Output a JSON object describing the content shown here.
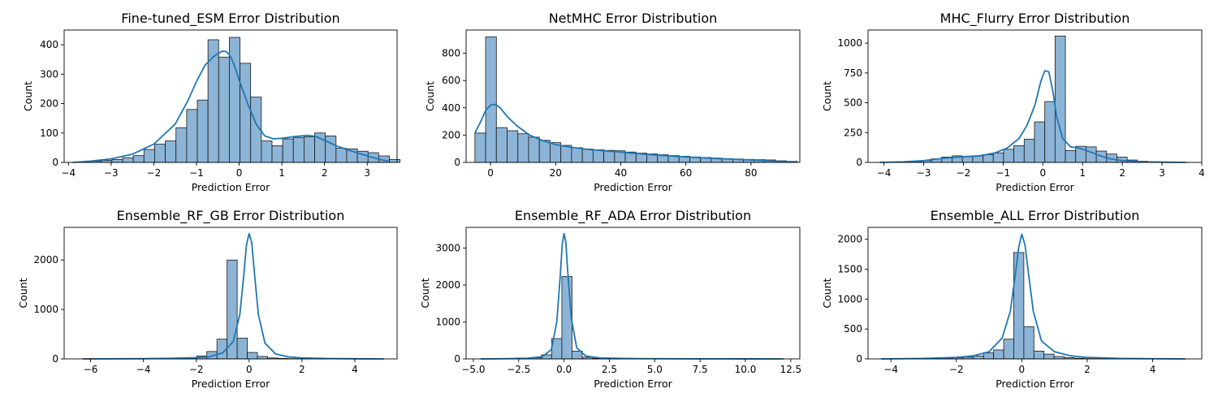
{
  "colors": {
    "bar_fill": "#8cb4d6",
    "bar_edge": "#1a1a1a",
    "kde_line": "#1f77b4",
    "axis": "#000000"
  },
  "chart_data": [
    {
      "type": "histogram",
      "title": "Fine-tuned_ESM Error Distribution",
      "xlabel": "Prediction Error",
      "ylabel": "Count",
      "xlim": [
        -4.1,
        3.7
      ],
      "ylim": [
        0,
        450
      ],
      "xticks": [
        -4,
        -3,
        -2,
        -1,
        0,
        1,
        2,
        3
      ],
      "yticks": [
        0,
        100,
        200,
        300,
        400
      ],
      "bin_start": -3.73,
      "bin_width": 0.25,
      "counts": [
        2,
        4,
        7,
        10,
        16,
        23,
        44,
        62,
        73,
        118,
        180,
        212,
        417,
        358,
        425,
        337,
        222,
        73,
        57,
        80,
        85,
        87,
        100,
        90,
        48,
        46,
        38,
        33,
        22,
        10
      ],
      "kde": [
        [
          -3.9,
          0
        ],
        [
          -3.5,
          4
        ],
        [
          -3.0,
          12
        ],
        [
          -2.5,
          28
        ],
        [
          -2.0,
          62
        ],
        [
          -1.5,
          130
        ],
        [
          -1.2,
          210
        ],
        [
          -1.0,
          275
        ],
        [
          -0.8,
          330
        ],
        [
          -0.6,
          360
        ],
        [
          -0.4,
          378
        ],
        [
          -0.3,
          377
        ],
        [
          -0.2,
          360
        ],
        [
          -0.1,
          325
        ],
        [
          0.0,
          280
        ],
        [
          0.2,
          200
        ],
        [
          0.4,
          130
        ],
        [
          0.6,
          90
        ],
        [
          0.8,
          80
        ],
        [
          1.0,
          82
        ],
        [
          1.3,
          88
        ],
        [
          1.6,
          92
        ],
        [
          1.8,
          88
        ],
        [
          2.0,
          75
        ],
        [
          2.3,
          55
        ],
        [
          2.6,
          40
        ],
        [
          3.0,
          22
        ],
        [
          3.3,
          10
        ],
        [
          3.5,
          4
        ]
      ]
    },
    {
      "type": "histogram",
      "title": "NetMHC Error Distribution",
      "xlabel": "Prediction Error",
      "ylabel": "Count",
      "xlim": [
        -7.5,
        95
      ],
      "ylim": [
        0,
        970
      ],
      "xticks": [
        0,
        20,
        40,
        60,
        80
      ],
      "yticks": [
        0,
        200,
        400,
        600,
        800
      ],
      "bin_start": -4.8,
      "bin_width": 3.3,
      "counts": [
        215,
        920,
        255,
        232,
        210,
        185,
        162,
        145,
        125,
        108,
        98,
        92,
        88,
        85,
        76,
        68,
        62,
        56,
        50,
        45,
        40,
        36,
        32,
        28,
        25,
        22,
        20,
        18,
        12,
        8
      ],
      "kde": [
        [
          -4.8,
          215
        ],
        [
          -3,
          300
        ],
        [
          -1.5,
          380
        ],
        [
          0,
          420
        ],
        [
          1.5,
          425
        ],
        [
          3,
          400
        ],
        [
          5,
          340
        ],
        [
          8,
          270
        ],
        [
          12,
          200
        ],
        [
          16,
          160
        ],
        [
          20,
          130
        ],
        [
          25,
          110
        ],
        [
          30,
          95
        ],
        [
          35,
          85
        ],
        [
          40,
          75
        ],
        [
          45,
          65
        ],
        [
          50,
          55
        ],
        [
          55,
          47
        ],
        [
          60,
          40
        ],
        [
          65,
          34
        ],
        [
          70,
          28
        ],
        [
          75,
          23
        ],
        [
          80,
          18
        ],
        [
          85,
          12
        ],
        [
          90,
          6
        ],
        [
          93.5,
          3
        ]
      ]
    },
    {
      "type": "histogram",
      "title": "MHC_Flurry Error Distribution",
      "xlabel": "Prediction Error",
      "ylabel": "Count",
      "xlim": [
        -4.4,
        4.0
      ],
      "ylim": [
        0,
        1110
      ],
      "xticks": [
        -4,
        -3,
        -2,
        -1,
        0,
        1,
        2,
        3,
        4
      ],
      "yticks": [
        0,
        250,
        500,
        750,
        1000
      ],
      "bin_start": -4.1,
      "bin_width": 0.2593,
      "counts": [
        2,
        3,
        5,
        8,
        15,
        30,
        45,
        55,
        50,
        55,
        65,
        80,
        110,
        140,
        195,
        340,
        510,
        1060,
        100,
        135,
        130,
        95,
        70,
        45,
        20,
        10,
        5,
        3,
        2,
        1
      ],
      "kde": [
        [
          -4.1,
          0
        ],
        [
          -3.5,
          5
        ],
        [
          -3.0,
          15
        ],
        [
          -2.5,
          35
        ],
        [
          -2.0,
          48
        ],
        [
          -1.6,
          55
        ],
        [
          -1.2,
          80
        ],
        [
          -0.9,
          120
        ],
        [
          -0.6,
          200
        ],
        [
          -0.4,
          310
        ],
        [
          -0.2,
          480
        ],
        [
          -0.05,
          680
        ],
        [
          0.05,
          770
        ],
        [
          0.15,
          760
        ],
        [
          0.25,
          600
        ],
        [
          0.35,
          380
        ],
        [
          0.5,
          200
        ],
        [
          0.7,
          130
        ],
        [
          0.9,
          120
        ],
        [
          1.1,
          100
        ],
        [
          1.4,
          60
        ],
        [
          1.7,
          30
        ],
        [
          2.0,
          15
        ],
        [
          2.5,
          5
        ],
        [
          3.0,
          2
        ],
        [
          3.6,
          0
        ]
      ]
    },
    {
      "type": "histogram",
      "title": "Ensemble_RF_GB Error Distribution",
      "xlabel": "Prediction Error",
      "ylabel": "Count",
      "xlim": [
        -7.0,
        5.6
      ],
      "ylim": [
        0,
        2660
      ],
      "xticks": [
        -6,
        -4,
        -2,
        0,
        2,
        4
      ],
      "yticks": [
        0,
        1000,
        2000
      ],
      "bin_start": -6.2,
      "bin_width": 0.3833,
      "counts": [
        0,
        1,
        0,
        1,
        2,
        2,
        3,
        5,
        8,
        12,
        20,
        60,
        150,
        400,
        2000,
        420,
        130,
        50,
        20,
        10,
        5,
        3,
        2,
        1,
        1,
        0,
        0,
        0,
        0,
        0
      ],
      "kde": [
        [
          -6.3,
          0
        ],
        [
          -4.0,
          5
        ],
        [
          -3.0,
          12
        ],
        [
          -2.0,
          25
        ],
        [
          -1.5,
          45
        ],
        [
          -1.0,
          120
        ],
        [
          -0.6,
          350
        ],
        [
          -0.35,
          900
        ],
        [
          -0.2,
          1700
        ],
        [
          -0.1,
          2300
        ],
        [
          0.0,
          2540
        ],
        [
          0.1,
          2350
        ],
        [
          0.2,
          1750
        ],
        [
          0.35,
          900
        ],
        [
          0.6,
          320
        ],
        [
          1.0,
          100
        ],
        [
          1.5,
          40
        ],
        [
          2.0,
          20
        ],
        [
          3.0,
          8
        ],
        [
          4.0,
          3
        ],
        [
          5.1,
          0
        ]
      ]
    },
    {
      "type": "histogram",
      "title": "Ensemble_RF_ADA Error Distribution",
      "xlabel": "Prediction Error",
      "ylabel": "Count",
      "xlim": [
        -5.4,
        13.0
      ],
      "ylim": [
        0,
        3560
      ],
      "xticks": [
        -5.0,
        -2.5,
        0.0,
        2.5,
        5.0,
        7.5,
        10.0,
        12.5
      ],
      "yticks": [
        0,
        1000,
        2000,
        3000
      ],
      "bin_start": -4.6,
      "bin_width": 0.56,
      "counts": [
        1,
        2,
        3,
        5,
        10,
        30,
        110,
        550,
        2230,
        210,
        45,
        15,
        8,
        4,
        2,
        2,
        1,
        1,
        0,
        0,
        0,
        0,
        0,
        0,
        0,
        0,
        0,
        0,
        0,
        0
      ],
      "kde": [
        [
          -4.6,
          0
        ],
        [
          -3.0,
          8
        ],
        [
          -2.0,
          20
        ],
        [
          -1.2,
          60
        ],
        [
          -0.7,
          250
        ],
        [
          -0.4,
          1000
        ],
        [
          -0.2,
          2300
        ],
        [
          -0.1,
          3100
        ],
        [
          0.0,
          3400
        ],
        [
          0.1,
          3150
        ],
        [
          0.2,
          2400
        ],
        [
          0.4,
          1100
        ],
        [
          0.7,
          300
        ],
        [
          1.2,
          80
        ],
        [
          2.0,
          25
        ],
        [
          4.0,
          8
        ],
        [
          7.0,
          3
        ],
        [
          10.0,
          1
        ],
        [
          12.1,
          0
        ]
      ]
    },
    {
      "type": "histogram",
      "title": "Ensemble_ALL Error Distribution",
      "xlabel": "Prediction Error",
      "ylabel": "Count",
      "xlim": [
        -4.7,
        5.5
      ],
      "ylim": [
        0,
        2200
      ],
      "xticks": [
        -4,
        -2,
        0,
        2,
        4
      ],
      "yticks": [
        0,
        500,
        1000,
        1500,
        2000
      ],
      "bin_start": -4.25,
      "bin_width": 0.308,
      "counts": [
        1,
        2,
        3,
        5,
        8,
        10,
        15,
        20,
        30,
        50,
        100,
        150,
        330,
        1780,
        540,
        130,
        80,
        40,
        20,
        10,
        5,
        3,
        2,
        1,
        1,
        0,
        0,
        0,
        0,
        0
      ],
      "kde": [
        [
          -4.3,
          0
        ],
        [
          -3.0,
          8
        ],
        [
          -2.0,
          25
        ],
        [
          -1.5,
          50
        ],
        [
          -1.0,
          120
        ],
        [
          -0.6,
          350
        ],
        [
          -0.35,
          800
        ],
        [
          -0.2,
          1400
        ],
        [
          -0.1,
          1850
        ],
        [
          0.0,
          2090
        ],
        [
          0.1,
          1900
        ],
        [
          0.2,
          1450
        ],
        [
          0.35,
          800
        ],
        [
          0.6,
          300
        ],
        [
          1.0,
          120
        ],
        [
          1.5,
          50
        ],
        [
          2.0,
          25
        ],
        [
          3.0,
          8
        ],
        [
          4.0,
          3
        ],
        [
          5.0,
          0
        ]
      ]
    }
  ]
}
